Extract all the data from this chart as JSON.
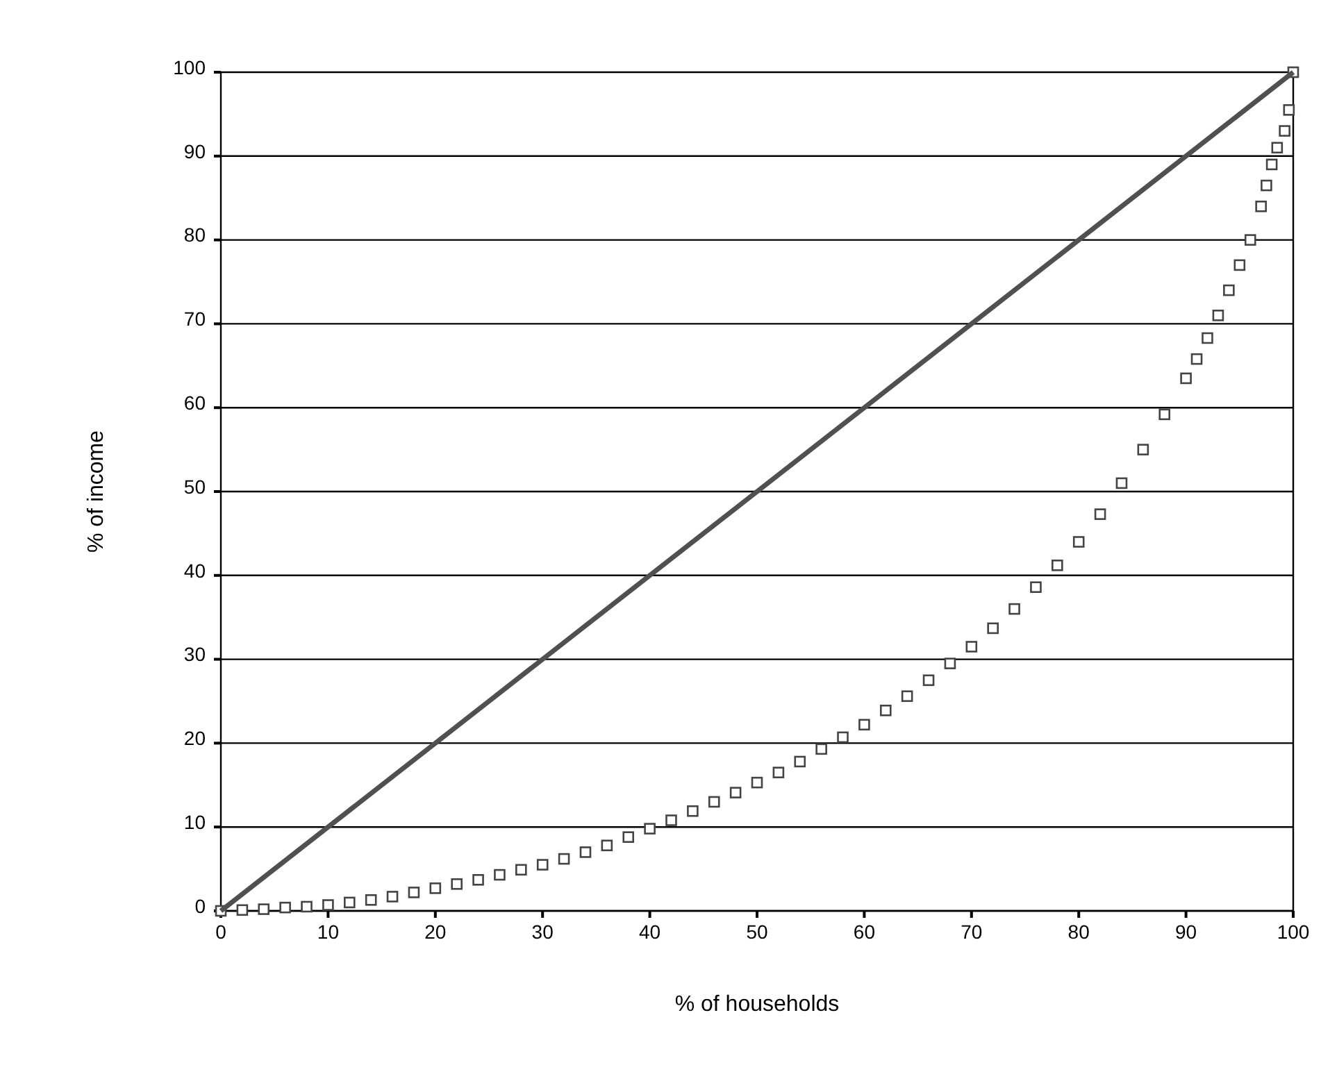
{
  "chart_data": {
    "type": "scatter",
    "xlabel": "% of households",
    "ylabel": "% of income",
    "xlim": [
      0,
      100
    ],
    "ylim": [
      0,
      100
    ],
    "xticks": [
      0,
      10,
      20,
      30,
      40,
      50,
      60,
      70,
      80,
      90,
      100
    ],
    "yticks": [
      0,
      10,
      20,
      30,
      40,
      50,
      60,
      70,
      80,
      90,
      100
    ],
    "grid": "y",
    "marker": "square",
    "series": [
      {
        "color": "#444444",
        "x": [
          0,
          2,
          4,
          6,
          8,
          10,
          12,
          14,
          16,
          18,
          20,
          22,
          24,
          26,
          28,
          30,
          32,
          34,
          36,
          38,
          40,
          42,
          44,
          46,
          48,
          50,
          52,
          54,
          56,
          58,
          60,
          62,
          64,
          66,
          68,
          70,
          72,
          74,
          76,
          78,
          80,
          82,
          84,
          86,
          88,
          90,
          91,
          92,
          93,
          94,
          95,
          96,
          97,
          97.5,
          98,
          98.5,
          99.2,
          99.6,
          100
        ],
        "values": [
          0,
          0.1,
          0.2,
          0.4,
          0.5,
          0.7,
          1,
          1.3,
          1.7,
          2.2,
          2.7,
          3.2,
          3.7,
          4.3,
          4.9,
          5.5,
          6.2,
          7,
          7.8,
          8.8,
          9.8,
          10.8,
          11.9,
          13,
          14.1,
          15.3,
          16.5,
          17.8,
          19.3,
          20.7,
          22.2,
          23.9,
          25.6,
          27.5,
          29.5,
          31.5,
          33.7,
          36,
          38.6,
          41.2,
          44,
          47.3,
          51,
          55,
          59.2,
          63.5,
          65.8,
          68.3,
          71,
          74,
          77,
          80,
          84,
          86.5,
          89,
          91,
          93,
          95.5,
          100
        ]
      },
      {
        "type": "line",
        "color": "#505050",
        "line_style": "solid",
        "marker": "none",
        "x": [
          0,
          100
        ],
        "values": [
          0,
          100
        ]
      }
    ]
  }
}
